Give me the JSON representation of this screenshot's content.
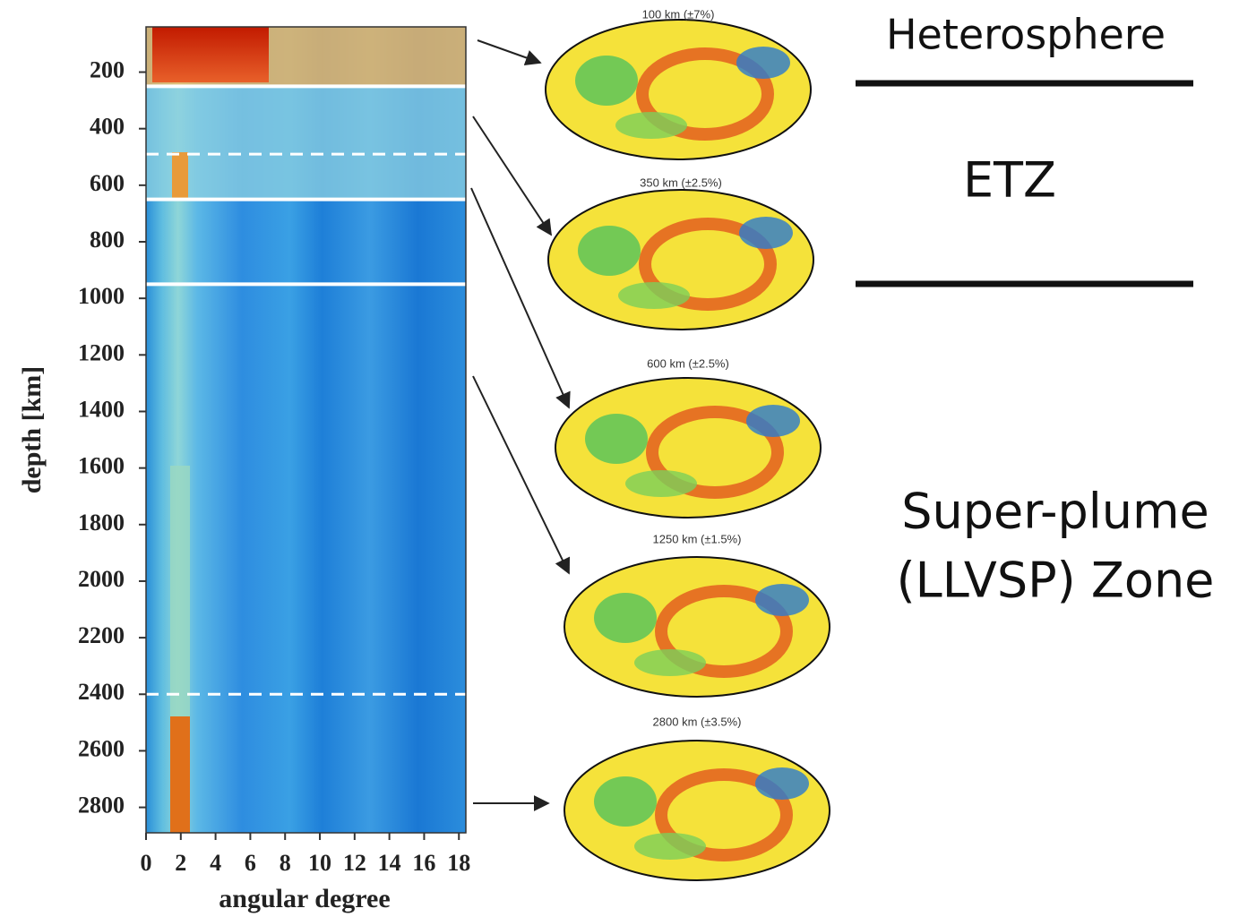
{
  "chart_data": {
    "type": "heatmap",
    "x_label": "angular degree",
    "y_label": "depth [km]",
    "xlim": [
      0,
      18.4
    ],
    "xticks": [
      0,
      2,
      4,
      6,
      8,
      10,
      12,
      14,
      16,
      18
    ],
    "ylim": [
      2890,
      40
    ],
    "yticks": [
      200,
      400,
      600,
      800,
      1000,
      1200,
      1400,
      1600,
      1800,
      2000,
      2200,
      2400,
      2600,
      2800
    ],
    "boundaries": [
      {
        "depth": 250,
        "style": "solid"
      },
      {
        "depth": 490,
        "style": "dashed"
      },
      {
        "depth": 650,
        "style": "solid"
      },
      {
        "depth": 950,
        "style": "solid"
      },
      {
        "depth": 2400,
        "style": "dashed"
      }
    ],
    "maps": [
      {
        "title": "100 km (±7%)"
      },
      {
        "title": "350 km (±2.5%)"
      },
      {
        "title": "600 km (±2.5%)"
      },
      {
        "title": "1250 km (±1.5%)"
      },
      {
        "title": "2800 km (±3.5%)"
      }
    ],
    "zones": [
      "Heterosphere",
      "ETZ",
      "Super-plume",
      "(LLVSP) Zone"
    ]
  }
}
